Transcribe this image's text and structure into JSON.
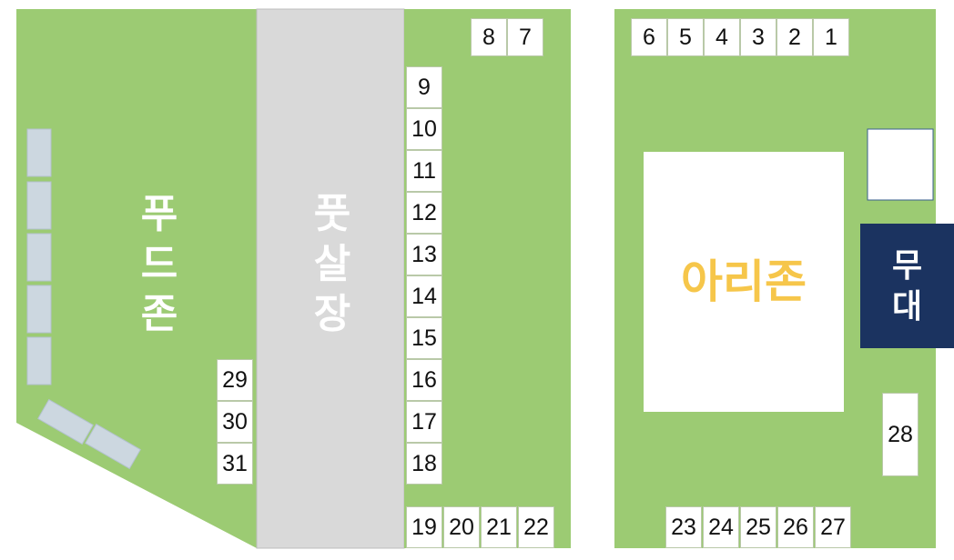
{
  "colors": {
    "grass": "#9ccb73",
    "road": "#d9d9d9",
    "booth": "#ffffff",
    "stage": "#1b3360",
    "stage_text": "#ffffff",
    "arizone_text": "#f6c64a",
    "food_text": "#ffffff",
    "pungsal_text": "#ffffff",
    "table": "#ccd7e0"
  },
  "zones": {
    "food_zone": [
      "푸",
      "드",
      "존"
    ],
    "pungsal_market": [
      "풋",
      "살",
      "장"
    ],
    "ari_zone": "아리존",
    "stage": [
      "무",
      "대"
    ]
  },
  "booths": {
    "top_middle": [
      "8",
      "7"
    ],
    "top_right": [
      "6",
      "5",
      "4",
      "3",
      "2",
      "1"
    ],
    "column_middle": [
      "9",
      "10",
      "11",
      "12",
      "13",
      "14",
      "15",
      "16",
      "17",
      "18"
    ],
    "bottom_middle": [
      "19",
      "20",
      "21",
      "22"
    ],
    "food_zone_column": [
      "29",
      "30",
      "31"
    ],
    "bottom_right": [
      "23",
      "24",
      "25",
      "26",
      "27"
    ],
    "right_single": [
      "28"
    ]
  }
}
